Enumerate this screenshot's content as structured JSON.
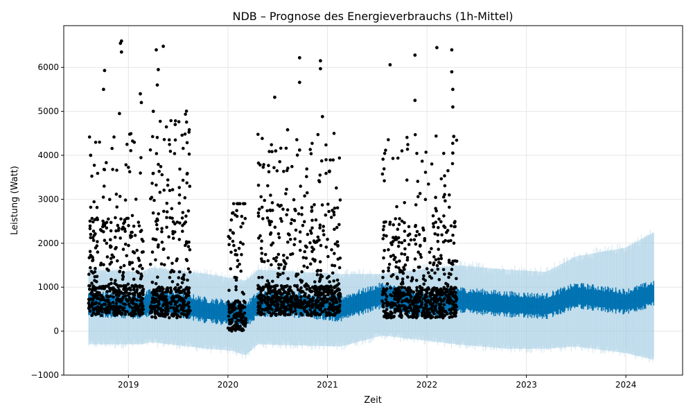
{
  "chart_data": {
    "type": "scatter",
    "title": "NDB – Prognose des Energieverbrauchs (1h-Mittel)",
    "xlabel": "Zeit",
    "ylabel": "Leistung (Watt)",
    "x_tick_labels": [
      "2019",
      "2020",
      "2021",
      "2022",
      "2023",
      "2024"
    ],
    "y_tick_labels": [
      "−1000",
      "0",
      "1000",
      "2000",
      "3000",
      "4000",
      "5000",
      "6000"
    ],
    "y_ticks": [
      -1000,
      0,
      1000,
      2000,
      3000,
      4000,
      5000,
      6000
    ],
    "xlim": [
      2018.35,
      2024.57
    ],
    "ylim": [
      -1000,
      6950
    ],
    "grid": true,
    "colors": {
      "observed": "#000000",
      "forecast": "#0072b2",
      "uncertainty": "#a6cee3"
    },
    "series": [
      {
        "kind": "observed_scatter",
        "segments": [
          {
            "x_start": 2018.6,
            "x_end": 2019.15,
            "typical_low": 350,
            "typical_high": 2600,
            "max": 6600
          },
          {
            "x_start": 2019.22,
            "x_end": 2019.62,
            "typical_low": 300,
            "typical_high": 3600,
            "max": 6450
          },
          {
            "x_start": 2020.0,
            "x_end": 2020.18,
            "typical_low": 0,
            "typical_high": 2900,
            "max": 2900
          },
          {
            "x_start": 2020.3,
            "x_end": 2021.13,
            "typical_low": 350,
            "typical_high": 2900,
            "max": 6200
          },
          {
            "x_start": 2021.55,
            "x_end": 2022.3,
            "typical_low": 300,
            "typical_high": 2500,
            "max": 6450
          }
        ],
        "outliers": [
          {
            "x": 2018.62,
            "y": 4000
          },
          {
            "x": 2018.75,
            "y": 5500
          },
          {
            "x": 2018.76,
            "y": 5930
          },
          {
            "x": 2018.92,
            "y": 6550
          },
          {
            "x": 2018.93,
            "y": 6600
          },
          {
            "x": 2018.93,
            "y": 6350
          },
          {
            "x": 2018.91,
            "y": 4950
          },
          {
            "x": 2019.12,
            "y": 5400
          },
          {
            "x": 2019.13,
            "y": 5200
          },
          {
            "x": 2019.28,
            "y": 6400
          },
          {
            "x": 2019.35,
            "y": 6480
          },
          {
            "x": 2019.3,
            "y": 5950
          },
          {
            "x": 2019.29,
            "y": 5600
          },
          {
            "x": 2019.25,
            "y": 5000
          },
          {
            "x": 2019.47,
            "y": 4700
          },
          {
            "x": 2020.47,
            "y": 5320
          },
          {
            "x": 2020.48,
            "y": 4100
          },
          {
            "x": 2020.6,
            "y": 4580
          },
          {
            "x": 2020.72,
            "y": 6220
          },
          {
            "x": 2020.72,
            "y": 5660
          },
          {
            "x": 2020.72,
            "y": 4120
          },
          {
            "x": 2020.93,
            "y": 6150
          },
          {
            "x": 2020.93,
            "y": 5970
          },
          {
            "x": 2020.95,
            "y": 4880
          },
          {
            "x": 2021.63,
            "y": 6060
          },
          {
            "x": 2021.88,
            "y": 6280
          },
          {
            "x": 2021.88,
            "y": 5250
          },
          {
            "x": 2022.1,
            "y": 6450
          },
          {
            "x": 2022.25,
            "y": 6400
          },
          {
            "x": 2022.25,
            "y": 5900
          },
          {
            "x": 2022.26,
            "y": 5500
          },
          {
            "x": 2022.26,
            "y": 5100
          },
          {
            "x": 2022.27,
            "y": 4430
          },
          {
            "x": 2022.26,
            "y": 4050
          }
        ]
      },
      {
        "kind": "forecast_mean",
        "name": "yhat",
        "points": [
          {
            "x": 2018.6,
            "y": 600
          },
          {
            "x": 2019.15,
            "y": 550
          },
          {
            "x": 2019.22,
            "y": 650
          },
          {
            "x": 2019.5,
            "y": 600
          },
          {
            "x": 2019.8,
            "y": 450
          },
          {
            "x": 2020.05,
            "y": 400
          },
          {
            "x": 2020.18,
            "y": 350
          },
          {
            "x": 2020.3,
            "y": 600
          },
          {
            "x": 2020.6,
            "y": 600
          },
          {
            "x": 2021.13,
            "y": 500
          },
          {
            "x": 2021.55,
            "y": 800
          },
          {
            "x": 2022.0,
            "y": 550
          },
          {
            "x": 2022.3,
            "y": 700
          },
          {
            "x": 2022.8,
            "y": 600
          },
          {
            "x": 2023.2,
            "y": 550
          },
          {
            "x": 2023.5,
            "y": 800
          },
          {
            "x": 2024.0,
            "y": 650
          },
          {
            "x": 2024.28,
            "y": 850
          }
        ]
      },
      {
        "kind": "uncertainty_interval",
        "name": "yhat_lower / yhat_upper",
        "points": [
          {
            "x": 2018.6,
            "lo": -300,
            "hi": 1400
          },
          {
            "x": 2019.15,
            "lo": -300,
            "hi": 1350
          },
          {
            "x": 2019.22,
            "lo": -250,
            "hi": 1450
          },
          {
            "x": 2019.8,
            "lo": -400,
            "hi": 1300
          },
          {
            "x": 2020.05,
            "lo": -450,
            "hi": 1200
          },
          {
            "x": 2020.18,
            "lo": -550,
            "hi": 1150
          },
          {
            "x": 2020.3,
            "lo": -300,
            "hi": 1400
          },
          {
            "x": 2021.13,
            "lo": -350,
            "hi": 1300
          },
          {
            "x": 2021.55,
            "lo": -100,
            "hi": 1300
          },
          {
            "x": 2022.3,
            "lo": -300,
            "hi": 1500
          },
          {
            "x": 2022.8,
            "lo": -400,
            "hi": 1400
          },
          {
            "x": 2023.2,
            "lo": -400,
            "hi": 1350
          },
          {
            "x": 2023.5,
            "lo": -350,
            "hi": 1700
          },
          {
            "x": 2024.0,
            "lo": -500,
            "hi": 1900
          },
          {
            "x": 2024.28,
            "lo": -650,
            "hi": 2250
          }
        ]
      }
    ]
  }
}
